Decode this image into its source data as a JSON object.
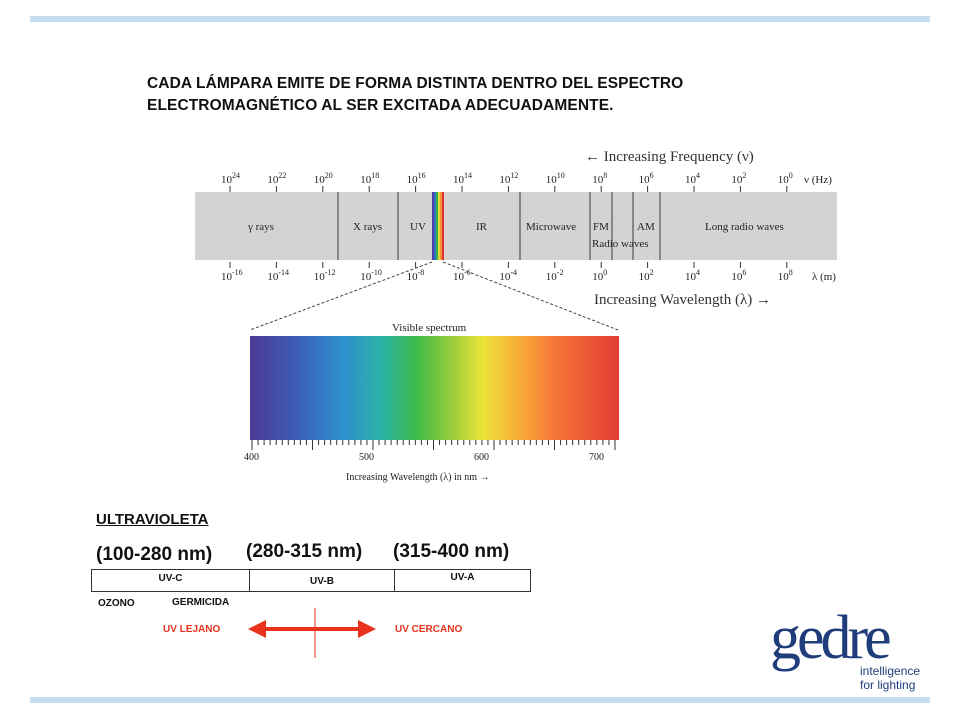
{
  "heading": {
    "line1": "CADA LÁMPARA EMITE DE FORMA DISTINTA DENTRO DEL ESPECTRO",
    "line2": "ELECTROMAGNÉTICO AL SER EXCITADA ADECUADAMENTE."
  },
  "em_spectrum": {
    "frequency_title": "← Increasing Frequency (ν)",
    "wavelength_title": "Increasing Wavelength (λ) →",
    "frequency_unit": "ν (Hz)",
    "wavelength_unit": "λ (m)",
    "frequency_ticks": [
      {
        "base": "10",
        "exp": "24"
      },
      {
        "base": "10",
        "exp": "22"
      },
      {
        "base": "10",
        "exp": "20"
      },
      {
        "base": "10",
        "exp": "18"
      },
      {
        "base": "10",
        "exp": "16"
      },
      {
        "base": "10",
        "exp": "14"
      },
      {
        "base": "10",
        "exp": "12"
      },
      {
        "base": "10",
        "exp": "10"
      },
      {
        "base": "10",
        "exp": "8"
      },
      {
        "base": "10",
        "exp": "6"
      },
      {
        "base": "10",
        "exp": "4"
      },
      {
        "base": "10",
        "exp": "2"
      },
      {
        "base": "10",
        "exp": "0"
      }
    ],
    "wavelength_ticks": [
      {
        "base": "10",
        "exp": "-16"
      },
      {
        "base": "10",
        "exp": "-14"
      },
      {
        "base": "10",
        "exp": "-12"
      },
      {
        "base": "10",
        "exp": "-10"
      },
      {
        "base": "10",
        "exp": "-8"
      },
      {
        "base": "10",
        "exp": "-6"
      },
      {
        "base": "10",
        "exp": "-4"
      },
      {
        "base": "10",
        "exp": "-2"
      },
      {
        "base": "10",
        "exp": "0"
      },
      {
        "base": "10",
        "exp": "2"
      },
      {
        "base": "10",
        "exp": "4"
      },
      {
        "base": "10",
        "exp": "6"
      },
      {
        "base": "10",
        "exp": "8"
      }
    ],
    "regions": [
      "γ rays",
      "X rays",
      "UV",
      "IR",
      "Microwave",
      "FM",
      "AM",
      "Long radio waves"
    ],
    "radio_waves_label": "Radio waves"
  },
  "visible": {
    "title": "Visible spectrum",
    "ticks": [
      "400",
      "500",
      "600",
      "700"
    ],
    "axis_label": "Increasing Wavelength (λ) in nm →"
  },
  "uv": {
    "title": "ULTRAVIOLETA",
    "ranges": [
      "(100-280 nm)",
      "(280-315 nm)",
      "(315-400 nm)"
    ],
    "bands": [
      "UV-C",
      "UV-B",
      "UV-A"
    ],
    "ozono": "OZONO",
    "germicida": "GERMICIDA",
    "far": "UV LEJANO",
    "near": "UV CERCANO"
  },
  "logo": {
    "wordmark": "gedre",
    "tagline_line1": "intelligence",
    "tagline_line2": "for lighting",
    "color": "#1f3d7a"
  },
  "colors": {
    "rule": "#c5dbee",
    "arrow": "#e8321c",
    "spectrum_band": "#d3d3d3"
  }
}
